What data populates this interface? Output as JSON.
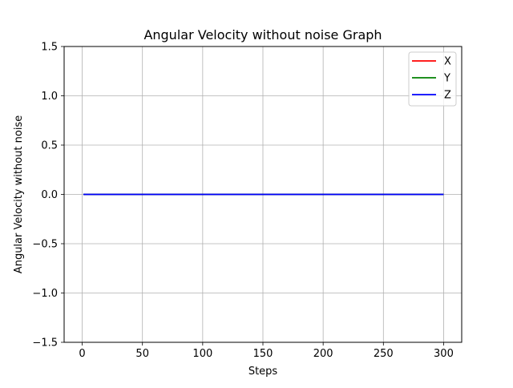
{
  "chart_data": {
    "type": "line",
    "title": "Angular Velocity without noise Graph",
    "xlabel": "Steps",
    "ylabel": "Angular Velocity without noise",
    "xlim": [
      -15,
      315
    ],
    "ylim": [
      -1.5,
      1.5
    ],
    "x_ticks": [
      0,
      50,
      100,
      150,
      200,
      250,
      300
    ],
    "x_tick_labels": [
      "0",
      "50",
      "100",
      "150",
      "200",
      "250",
      "300"
    ],
    "y_ticks": [
      -1.5,
      -1.0,
      -0.5,
      0.0,
      0.5,
      1.0,
      1.5
    ],
    "y_tick_labels": [
      "−1.5",
      "−1.0",
      "−0.5",
      "0.0",
      "0.5",
      "1.0",
      "1.5"
    ],
    "grid": true,
    "legend_position": "top-right",
    "x_range": [
      1,
      300
    ],
    "series": [
      {
        "name": "X",
        "color": "#ff0000",
        "values": [
          0.0,
          0.0
        ]
      },
      {
        "name": "Y",
        "color": "#008000",
        "values": [
          0.0,
          0.0
        ]
      },
      {
        "name": "Z",
        "color": "#0000ff",
        "values": [
          0.0,
          0.0
        ]
      }
    ]
  }
}
